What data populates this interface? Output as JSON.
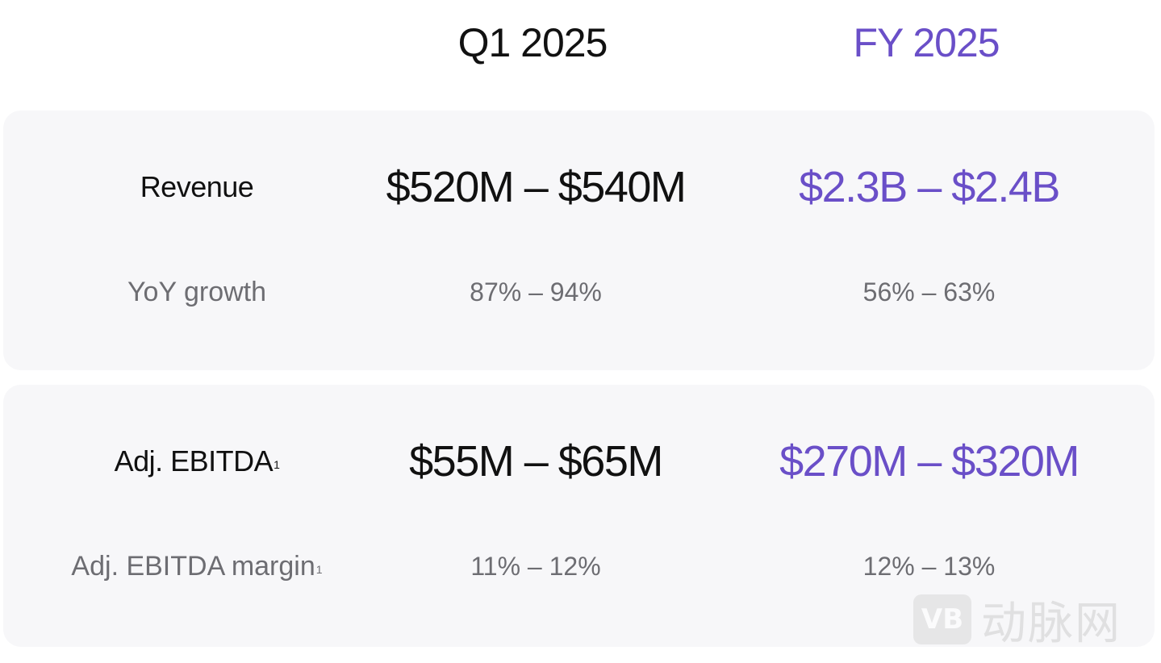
{
  "colors": {
    "accent_purple": "#6a4fc8",
    "dark_text": "#111111",
    "muted_text": "#6d6d72",
    "panel_bg": "#f7f7f9"
  },
  "headers": {
    "q1": "Q1 2025",
    "fy": "FY 2025"
  },
  "rows": [
    {
      "label": "Revenue",
      "label_sup": "",
      "q1_value": "$520M – $540M",
      "fy_value": "$2.3B – $2.4B",
      "sub_label": "YoY growth",
      "sub_label_sup": "",
      "q1_sub": "87% – 94%",
      "fy_sub": "56% – 63%"
    },
    {
      "label": "Adj. EBITDA",
      "label_sup": "1",
      "q1_value": "$55M – $65M",
      "fy_value": "$270M – $320M",
      "sub_label": "Adj. EBITDA margin",
      "sub_label_sup": "1",
      "q1_sub": "11% – 12%",
      "fy_sub": "12% – 13%"
    }
  ],
  "watermark": {
    "logo_text": "VB",
    "text": "动脉网"
  }
}
